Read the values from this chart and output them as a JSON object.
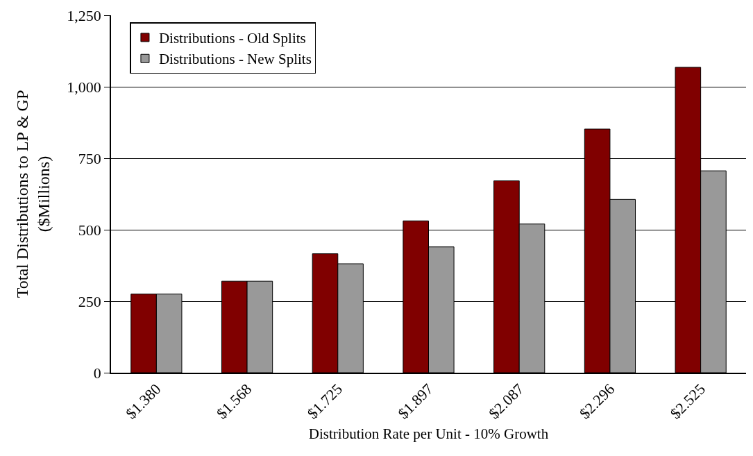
{
  "chart_data": {
    "type": "bar",
    "xlabel": "Distribution Rate per Unit - 10% Growth",
    "ylabel": "Total Distributions to LP & GP\n($Millions)",
    "categories": [
      "$1.380",
      "$1.568",
      "$1.725",
      "$1.897",
      "$2.087",
      "$2.296",
      "$2.525"
    ],
    "series": [
      {
        "name": "Distributions - Old Splits",
        "color": "#800000",
        "values": [
          275,
          320,
          416,
          531,
          671,
          852,
          1068
        ]
      },
      {
        "name": "Distributions - New Splits",
        "color": "#999999",
        "values": [
          275,
          320,
          381,
          440,
          520,
          606,
          706
        ]
      }
    ],
    "ylim": [
      0,
      1250
    ],
    "yticks": [
      0,
      {
        "value": 250,
        "label": "250"
      },
      {
        "value": 500,
        "label": "500"
      },
      {
        "value": 750,
        "label": "750"
      },
      {
        "value": 1000,
        "label": "1,000"
      },
      {
        "value": 1250,
        "label": "1,250"
      }
    ],
    "grid": "y",
    "legend": "top left"
  }
}
